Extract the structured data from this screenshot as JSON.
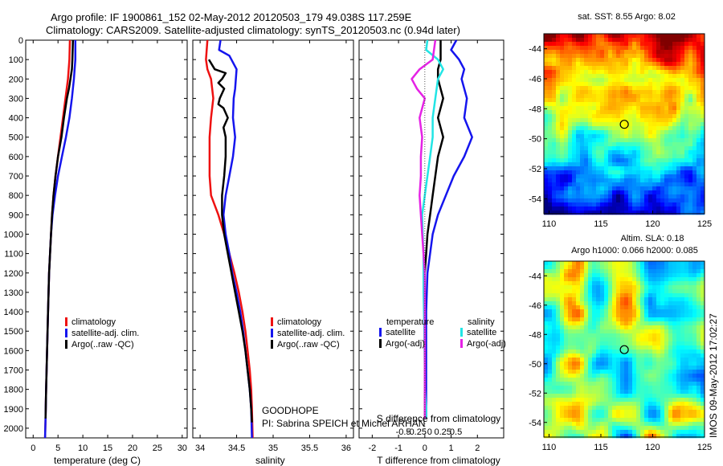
{
  "header": {
    "line1": "Argo profile: IF 1900861_152 02-May-2012 20120503_179 49.038S 117.259E",
    "line2": "Climatology: CARS2009. Satellite-adjusted climatology: synTS_20120503.nc (0.94d later)"
  },
  "colors": {
    "red": "#ee1111",
    "blue": "#1515ee",
    "black": "#000000",
    "cyan": "#22e5e5",
    "magenta": "#e522e5"
  },
  "chart_data": [
    {
      "id": "temperature",
      "type": "line",
      "xlabel": "temperature (deg C)",
      "xticks": [
        0,
        5,
        10,
        15,
        20,
        25,
        30
      ],
      "xlim": [
        -1.5,
        31
      ],
      "ylim": [
        2050,
        0
      ],
      "yticks": [
        0,
        100,
        200,
        300,
        400,
        500,
        600,
        700,
        800,
        900,
        1000,
        1100,
        1200,
        1300,
        1400,
        1500,
        1600,
        1700,
        1800,
        1900,
        2000
      ],
      "legend": [
        "climatology",
        "satellite-adj. clim.",
        "Argo(..raw -QC)"
      ],
      "legend_position": "bottom-center",
      "series": [
        {
          "name": "climatology",
          "color": "red",
          "points": [
            [
              7.4,
              0
            ],
            [
              7.3,
              100
            ],
            [
              7.0,
              200
            ],
            [
              6.5,
              300
            ],
            [
              6.0,
              400
            ],
            [
              5.5,
              500
            ],
            [
              5.0,
              600
            ],
            [
              4.5,
              700
            ],
            [
              4.1,
              800
            ],
            [
              3.8,
              900
            ],
            [
              3.6,
              1000
            ],
            [
              3.4,
              1100
            ],
            [
              3.2,
              1200
            ],
            [
              3.0,
              1400
            ],
            [
              2.8,
              1600
            ],
            [
              2.6,
              1800
            ],
            [
              2.5,
              1950
            ],
            [
              2.4,
              2050
            ]
          ]
        },
        {
          "name": "satellite-adj. clim.",
          "color": "blue",
          "points": [
            [
              8.5,
              0
            ],
            [
              8.5,
              100
            ],
            [
              8.2,
              200
            ],
            [
              7.8,
              300
            ],
            [
              7.3,
              400
            ],
            [
              6.6,
              500
            ],
            [
              5.8,
              600
            ],
            [
              5.0,
              700
            ],
            [
              4.4,
              800
            ],
            [
              3.9,
              900
            ],
            [
              3.6,
              1000
            ],
            [
              3.4,
              1100
            ],
            [
              3.2,
              1200
            ],
            [
              3.0,
              1400
            ],
            [
              2.8,
              1600
            ],
            [
              2.6,
              1800
            ],
            [
              2.5,
              1950
            ],
            [
              2.4,
              2050
            ]
          ]
        },
        {
          "name": "Argo(..raw -QC)",
          "color": "black",
          "points": [
            [
              8.0,
              0
            ],
            [
              7.9,
              100
            ],
            [
              7.8,
              150
            ],
            [
              7.5,
              200
            ],
            [
              7.2,
              250
            ],
            [
              6.8,
              300
            ],
            [
              6.2,
              400
            ],
            [
              5.7,
              500
            ],
            [
              5.0,
              600
            ],
            [
              4.5,
              700
            ],
            [
              4.1,
              800
            ],
            [
              3.8,
              900
            ],
            [
              3.6,
              1000
            ],
            [
              3.4,
              1100
            ],
            [
              3.2,
              1200
            ],
            [
              3.0,
              1400
            ],
            [
              2.8,
              1600
            ],
            [
              2.6,
              1800
            ],
            [
              2.5,
              1950
            ]
          ]
        }
      ]
    },
    {
      "id": "salinity",
      "type": "line",
      "xlabel": "salinity",
      "xticks": [
        34,
        34.5,
        35,
        35.5,
        36
      ],
      "xlim": [
        33.9,
        36.1
      ],
      "ylim": [
        2050,
        0
      ],
      "legend": [
        "climatology",
        "satellite-adj. clim.",
        "Argo(..raw -QC)"
      ],
      "legend_position": "bottom-right",
      "annotations": [
        "GOODHOPE",
        "PI: Sabrina SPEICH et Michel ARHAN"
      ],
      "series": [
        {
          "name": "climatology",
          "color": "red",
          "points": [
            [
              34.1,
              0
            ],
            [
              34.08,
              100
            ],
            [
              34.1,
              150
            ],
            [
              34.15,
              200
            ],
            [
              34.18,
              300
            ],
            [
              34.15,
              400
            ],
            [
              34.13,
              500
            ],
            [
              34.13,
              600
            ],
            [
              34.13,
              700
            ],
            [
              34.15,
              800
            ],
            [
              34.25,
              900
            ],
            [
              34.33,
              1000
            ],
            [
              34.4,
              1100
            ],
            [
              34.47,
              1200
            ],
            [
              34.53,
              1300
            ],
            [
              34.58,
              1400
            ],
            [
              34.62,
              1500
            ],
            [
              34.65,
              1600
            ],
            [
              34.68,
              1700
            ],
            [
              34.7,
              1800
            ],
            [
              34.71,
              1900
            ],
            [
              34.72,
              2050
            ]
          ]
        },
        {
          "name": "satellite-adj. clim.",
          "color": "blue",
          "points": [
            [
              34.28,
              0
            ],
            [
              34.26,
              50
            ],
            [
              34.4,
              80
            ],
            [
              34.5,
              150
            ],
            [
              34.48,
              250
            ],
            [
              34.46,
              300
            ],
            [
              34.45,
              400
            ],
            [
              34.48,
              500
            ],
            [
              34.45,
              600
            ],
            [
              34.4,
              700
            ],
            [
              34.35,
              800
            ],
            [
              34.32,
              900
            ],
            [
              34.35,
              1000
            ],
            [
              34.4,
              1100
            ],
            [
              34.44,
              1200
            ],
            [
              34.5,
              1300
            ],
            [
              34.55,
              1400
            ],
            [
              34.59,
              1500
            ],
            [
              34.62,
              1600
            ],
            [
              34.65,
              1700
            ],
            [
              34.68,
              1800
            ],
            [
              34.7,
              1900
            ],
            [
              34.71,
              2050
            ]
          ]
        },
        {
          "name": "Argo(..raw -QC)",
          "color": "black",
          "points": [
            [
              34.12,
              100
            ],
            [
              34.2,
              150
            ],
            [
              34.35,
              170
            ],
            [
              34.3,
              200
            ],
            [
              34.25,
              220
            ],
            [
              34.33,
              250
            ],
            [
              34.27,
              300
            ],
            [
              34.25,
              330
            ],
            [
              34.32,
              350
            ],
            [
              34.38,
              400
            ],
            [
              34.32,
              450
            ],
            [
              34.35,
              500
            ],
            [
              34.35,
              600
            ],
            [
              34.33,
              700
            ],
            [
              34.3,
              800
            ],
            [
              34.3,
              900
            ],
            [
              34.33,
              1000
            ],
            [
              34.38,
              1100
            ],
            [
              34.43,
              1200
            ],
            [
              34.48,
              1300
            ],
            [
              34.53,
              1400
            ],
            [
              34.58,
              1500
            ],
            [
              34.62,
              1600
            ],
            [
              34.65,
              1700
            ],
            [
              34.68,
              1800
            ],
            [
              34.7,
              1900
            ],
            [
              34.71,
              1970
            ]
          ]
        }
      ]
    },
    {
      "id": "difference",
      "type": "line",
      "xlabel": "T difference from climatology",
      "xlabel_top": "S difference from climatology",
      "xticks": [
        -2,
        -1,
        0,
        1,
        2
      ],
      "xticks_s": [
        "-0.5",
        "-0.25",
        "0",
        "0.25",
        "0.5"
      ],
      "xlim": [
        -2.5,
        3
      ],
      "ylim": [
        2050,
        0
      ],
      "legend_temperature_title": "temperature",
      "legend_salinity_title": "salinity",
      "legend": [
        "satellite",
        "Argo(-adj)",
        "satellite",
        "Argo(-adj)"
      ],
      "legend_position": "bottom-center",
      "series": [
        {
          "name": "T satellite",
          "color": "blue",
          "points": [
            [
              1.2,
              0
            ],
            [
              1.0,
              50
            ],
            [
              1.3,
              100
            ],
            [
              1.5,
              150
            ],
            [
              1.4,
              200
            ],
            [
              1.6,
              300
            ],
            [
              1.5,
              400
            ],
            [
              1.8,
              500
            ],
            [
              1.5,
              600
            ],
            [
              1.1,
              700
            ],
            [
              0.8,
              800
            ],
            [
              0.5,
              900
            ],
            [
              0.3,
              1000
            ],
            [
              0.2,
              1100
            ],
            [
              0.1,
              1200
            ],
            [
              0.05,
              1400
            ],
            [
              0.05,
              1600
            ],
            [
              0.05,
              1800
            ],
            [
              0.05,
              1950
            ]
          ]
        },
        {
          "name": "T Argo(-adj)",
          "color": "black",
          "points": [
            [
              0.6,
              0
            ],
            [
              0.6,
              100
            ],
            [
              0.5,
              150
            ],
            [
              0.5,
              200
            ],
            [
              0.7,
              300
            ],
            [
              0.5,
              400
            ],
            [
              0.7,
              500
            ],
            [
              0.5,
              600
            ],
            [
              0.4,
              700
            ],
            [
              0.3,
              800
            ],
            [
              0.2,
              900
            ],
            [
              0.1,
              1000
            ],
            [
              0.05,
              1100
            ],
            [
              0.0,
              1200
            ],
            [
              0.0,
              1400
            ],
            [
              0.0,
              1600
            ],
            [
              0.0,
              1800
            ],
            [
              0.0,
              1950
            ]
          ]
        },
        {
          "name": "S satellite",
          "color": "cyan",
          "points": [
            [
              0.1,
              0
            ],
            [
              0.05,
              50
            ],
            [
              0.5,
              100
            ],
            [
              0.7,
              150
            ],
            [
              0.5,
              200
            ],
            [
              0.4,
              300
            ],
            [
              0.3,
              400
            ],
            [
              0.3,
              500
            ],
            [
              0.2,
              600
            ],
            [
              0.1,
              700
            ],
            [
              0.0,
              800
            ],
            [
              -0.1,
              900
            ],
            [
              -0.08,
              1000
            ],
            [
              -0.05,
              1100
            ],
            [
              -0.05,
              1300
            ],
            [
              -0.02,
              1500
            ],
            [
              0.0,
              1700
            ],
            [
              0.0,
              1800
            ],
            [
              0.05,
              1900
            ],
            [
              0.05,
              1950
            ]
          ]
        },
        {
          "name": "S Argo(-adj)",
          "color": "magenta",
          "points": [
            [
              0.4,
              0
            ],
            [
              0.3,
              100
            ],
            [
              -0.2,
              150
            ],
            [
              -0.5,
              200
            ],
            [
              -0.3,
              250
            ],
            [
              0.0,
              300
            ],
            [
              -0.2,
              400
            ],
            [
              -0.1,
              500
            ],
            [
              -0.15,
              600
            ],
            [
              -0.15,
              700
            ],
            [
              -0.2,
              800
            ],
            [
              -0.15,
              900
            ],
            [
              -0.1,
              1000
            ],
            [
              -0.05,
              1100
            ],
            [
              0.0,
              1200
            ],
            [
              0.0,
              1400
            ],
            [
              0.0,
              1600
            ],
            [
              0.0,
              1800
            ],
            [
              0.0,
              1950
            ]
          ]
        }
      ]
    },
    {
      "id": "sst-map",
      "type": "heatmap",
      "title": "sat. SST: 8.55 Argo: 8.02",
      "xticks": [
        110,
        115,
        120,
        125
      ],
      "yticks": [
        -44,
        -46,
        -48,
        -50,
        -52,
        -54
      ],
      "xlim": [
        109.5,
        125
      ],
      "ylim": [
        -55,
        -43
      ],
      "marker": {
        "lon": 117.259,
        "lat": -49.038
      }
    },
    {
      "id": "sla-map",
      "type": "heatmap",
      "title_line1": "Altim. SLA: 0.18",
      "title_line2": "Argo h1000: 0.066 h2000: 0.085",
      "xticks": [
        110,
        115,
        120,
        125
      ],
      "yticks": [
        -44,
        -46,
        -48,
        -50,
        -52,
        -54
      ],
      "xlim": [
        109.5,
        125
      ],
      "ylim": [
        -55,
        -43
      ],
      "marker": {
        "lon": 117.259,
        "lat": -49.038
      }
    }
  ],
  "side_stamp": "IMOS 09-May-2012 17:02:27"
}
